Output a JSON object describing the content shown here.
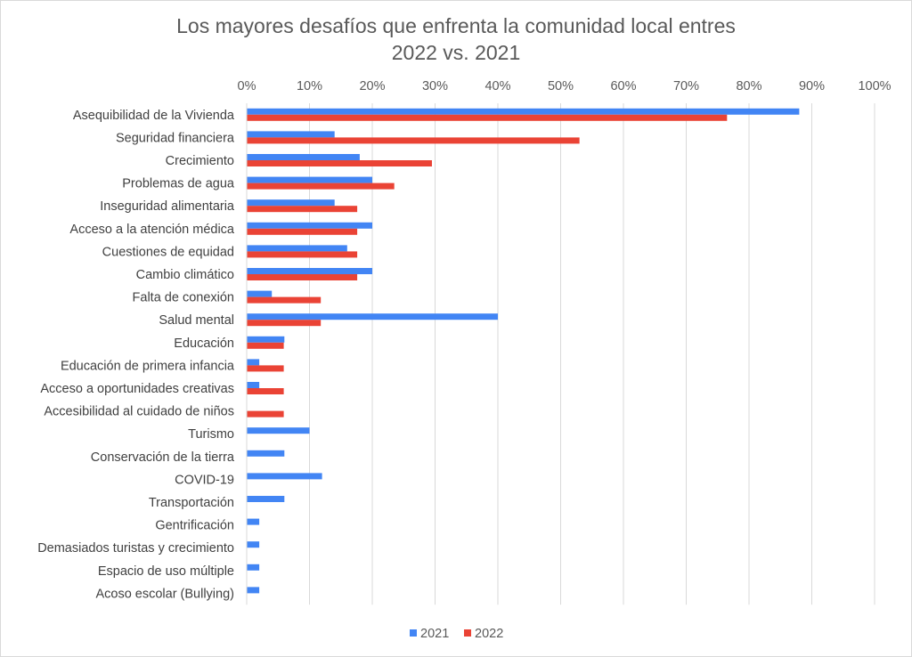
{
  "chart_data": {
    "type": "bar",
    "orientation": "horizontal",
    "title_line1": "Los mayores desafíos que enfrenta la comunidad local entres",
    "title_line2": "2022 vs. 2021",
    "xlim": [
      0,
      100
    ],
    "x_ticks": [
      "0%",
      "10%",
      "20%",
      "30%",
      "40%",
      "50%",
      "60%",
      "70%",
      "80%",
      "90%",
      "100%"
    ],
    "x_axis_position": "top",
    "grid": true,
    "legend_position": "bottom",
    "categories": [
      "Asequibilidad de la Vivienda",
      "Seguridad financiera",
      "Crecimiento",
      "Problemas de agua",
      "Inseguridad alimentaria",
      "Acceso a la atención médica",
      "Cuestiones de equidad",
      "Cambio climático",
      "Falta de conexión",
      "Salud mental",
      "Educación",
      "Educación de primera infancia",
      "Acceso a oportunidades creativas",
      "Accesibilidad al cuidado de niños",
      "Turismo",
      "Conservación de la tierra",
      "COVID-19",
      "Transportación",
      "Gentrificación",
      "Demasiados turistas y crecimiento",
      "Espacio de uso múltiple",
      "Acoso escolar (Bullying)"
    ],
    "series": [
      {
        "name": "2021",
        "color": "#4285f4",
        "values": [
          88,
          14,
          18,
          20,
          14,
          20,
          16,
          20,
          4,
          40,
          6,
          2,
          2,
          0,
          10,
          6,
          12,
          6,
          2,
          2,
          2,
          2
        ]
      },
      {
        "name": "2022",
        "color": "#ea4335",
        "values": [
          76.5,
          53,
          29.5,
          23.5,
          17.6,
          17.6,
          17.6,
          17.6,
          11.8,
          11.8,
          5.9,
          5.9,
          5.9,
          5.9,
          0,
          0,
          0,
          0,
          0,
          0,
          0,
          0
        ]
      }
    ]
  }
}
